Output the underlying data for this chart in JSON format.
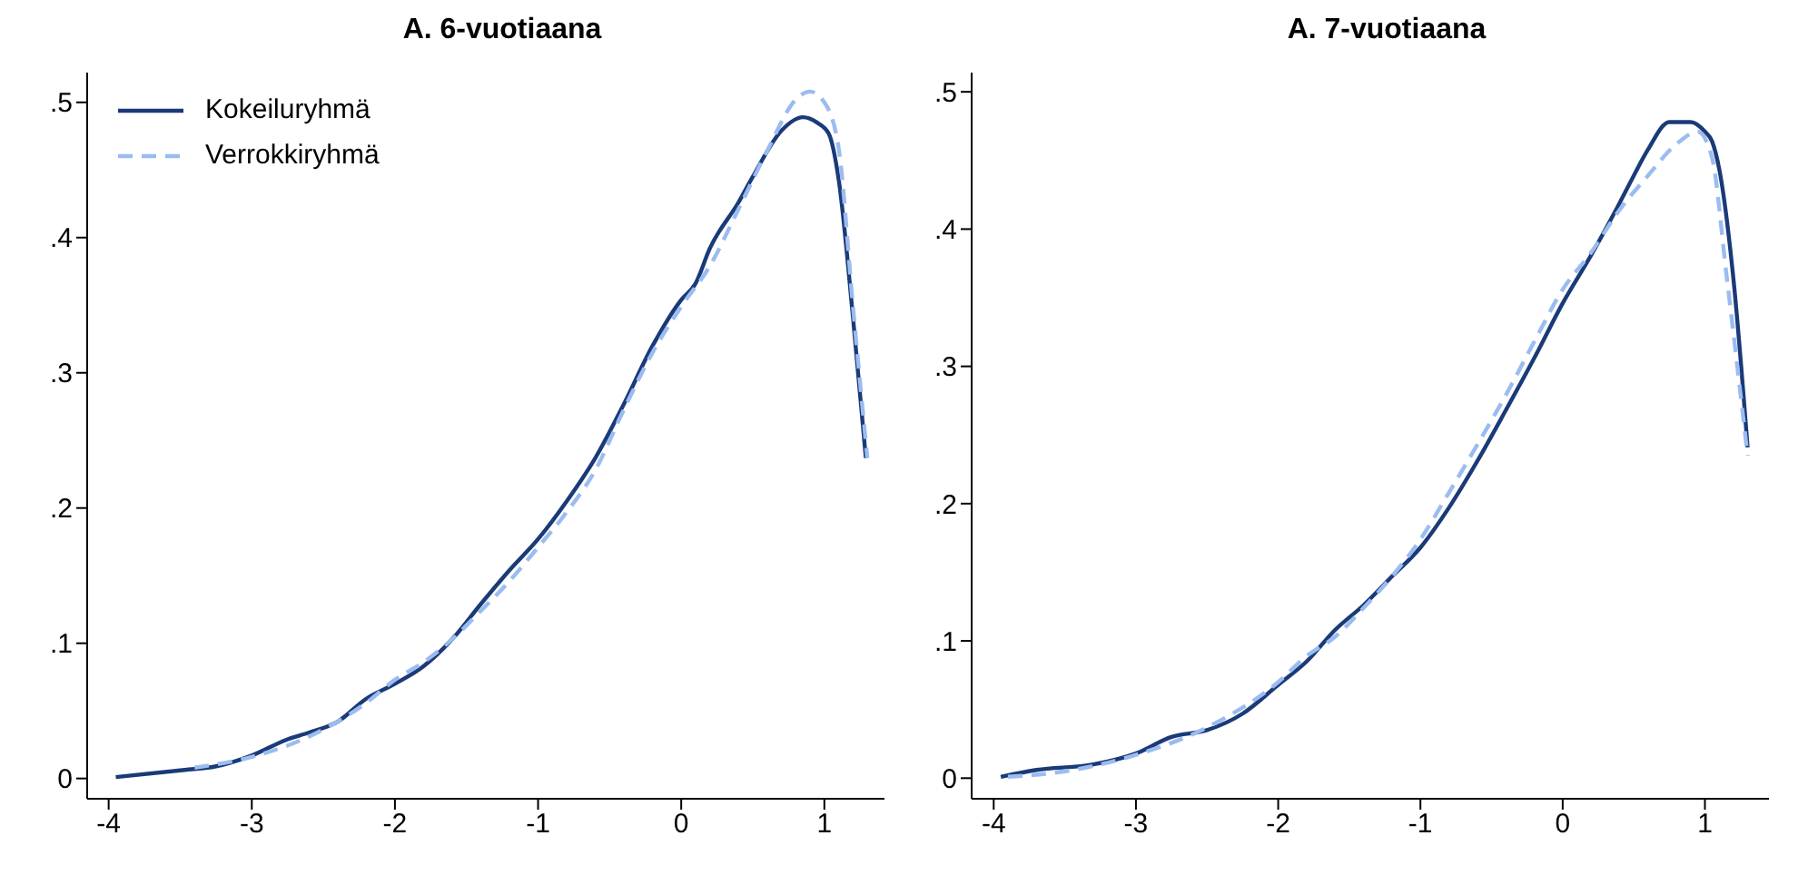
{
  "chart_data": [
    {
      "type": "line",
      "title": "A. 6-vuotiaana",
      "marker": "none",
      "legend": "top left",
      "xlim": [
        -4.15,
        1.42
      ],
      "xticks": [
        -4,
        -3,
        -2,
        -1,
        0,
        1
      ],
      "ylim": [
        -0.015,
        0.522
      ],
      "yticks": [
        0,
        {
          "value": 0.1,
          "label": ".1"
        },
        {
          "value": 0.2,
          "label": ".2"
        },
        {
          "value": 0.3,
          "label": ".3"
        },
        {
          "value": 0.4,
          "label": ".4"
        },
        {
          "value": 0.5,
          "label": ".5"
        }
      ],
      "series": [
        {
          "name": "Kokeiluryhmä",
          "color": "#1a3a78",
          "line_style": "solid",
          "x": [
            -3.95,
            -3.5,
            -3.25,
            -3.0,
            -2.75,
            -2.6,
            -2.4,
            -2.2,
            -2.0,
            -1.8,
            -1.6,
            -1.4,
            -1.2,
            -1.0,
            -0.8,
            -0.6,
            -0.4,
            -0.2,
            0.0,
            0.1,
            0.2,
            0.4,
            0.5,
            0.7,
            0.85,
            0.95,
            1.03,
            1.1,
            1.2,
            1.29
          ],
          "values": [
            0.001,
            0.006,
            0.009,
            0.017,
            0.029,
            0.034,
            0.042,
            0.059,
            0.07,
            0.083,
            0.103,
            0.129,
            0.154,
            0.177,
            0.205,
            0.237,
            0.277,
            0.32,
            0.354,
            0.366,
            0.392,
            0.426,
            0.445,
            0.479,
            0.489,
            0.485,
            0.477,
            0.443,
            0.341,
            0.237
          ]
        },
        {
          "name": "Verrokkiryhmä",
          "color": "#9bbcf0",
          "line_style": "dashed",
          "x": [
            -3.4,
            -3.0,
            -2.6,
            -2.2,
            -2.0,
            -1.8,
            -1.6,
            -1.4,
            -1.2,
            -1.0,
            -0.8,
            -0.6,
            -0.4,
            -0.2,
            0.0,
            0.2,
            0.4,
            0.6,
            0.8,
            0.9,
            1.0,
            1.1,
            1.2,
            1.3
          ],
          "values": [
            0.008,
            0.016,
            0.031,
            0.056,
            0.073,
            0.086,
            0.103,
            0.124,
            0.146,
            0.171,
            0.197,
            0.228,
            0.273,
            0.315,
            0.349,
            0.379,
            0.421,
            0.464,
            0.502,
            0.508,
            0.5,
            0.466,
            0.349,
            0.237
          ]
        }
      ]
    },
    {
      "type": "line",
      "title": "A. 7-vuotiaana",
      "marker": "none",
      "xlim": [
        -4.155,
        1.45
      ],
      "xticks": [
        -4,
        -3,
        -2,
        -1,
        0,
        1
      ],
      "ylim": [
        -0.015,
        0.514
      ],
      "yticks": [
        0,
        {
          "value": 0.1,
          "label": ".1"
        },
        {
          "value": 0.2,
          "label": ".2"
        },
        {
          "value": 0.3,
          "label": ".3"
        },
        {
          "value": 0.4,
          "label": ".4"
        },
        {
          "value": 0.5,
          "label": ".5"
        }
      ],
      "series": [
        {
          "color": "#1a3a78",
          "line_style": "solid",
          "x": [
            -3.95,
            -3.7,
            -3.3,
            -3.0,
            -2.75,
            -2.5,
            -2.25,
            -2.0,
            -1.8,
            -1.6,
            -1.4,
            -1.2,
            -1.0,
            -0.8,
            -0.6,
            -0.4,
            -0.2,
            0.0,
            0.2,
            0.4,
            0.5,
            0.6,
            0.75,
            0.9,
            1.0,
            1.05,
            1.1,
            1.2,
            1.3
          ],
          "values": [
            0.001,
            0.006,
            0.01,
            0.018,
            0.03,
            0.035,
            0.047,
            0.068,
            0.085,
            0.108,
            0.126,
            0.147,
            0.168,
            0.197,
            0.231,
            0.268,
            0.306,
            0.346,
            0.381,
            0.419,
            0.439,
            0.458,
            0.478,
            0.478,
            0.471,
            0.464,
            0.444,
            0.364,
            0.241
          ]
        },
        {
          "color": "#9bbcf0",
          "line_style": "dashed",
          "x": [
            -3.9,
            -3.5,
            -3.0,
            -2.5,
            -2.0,
            -1.8,
            -1.6,
            -1.4,
            -1.2,
            -1.0,
            -0.8,
            -0.6,
            -0.4,
            -0.2,
            0.0,
            0.2,
            0.4,
            0.6,
            0.8,
            0.95,
            1.05,
            1.15,
            1.3
          ],
          "values": [
            0.001,
            0.005,
            0.017,
            0.037,
            0.07,
            0.089,
            0.103,
            0.124,
            0.147,
            0.174,
            0.208,
            0.243,
            0.279,
            0.318,
            0.356,
            0.383,
            0.414,
            0.439,
            0.462,
            0.471,
            0.452,
            0.368,
            0.235
          ]
        }
      ]
    }
  ]
}
